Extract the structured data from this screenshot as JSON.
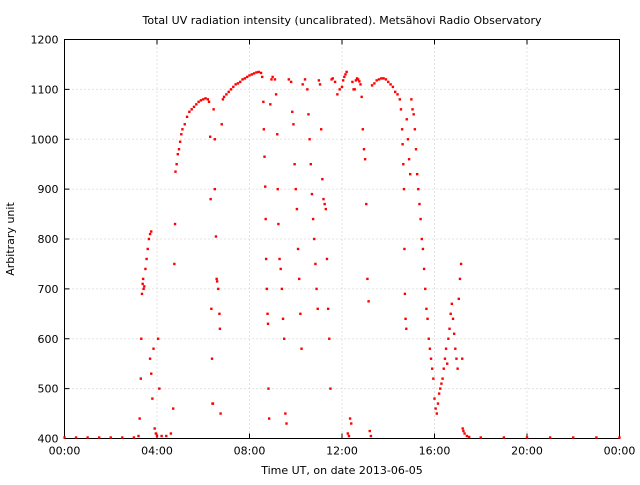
{
  "chart_data": {
    "type": "scatter",
    "title": "Total UV radiation intensity (uncalibrated). Metsähovi Radio Observatory",
    "xlabel": "Time UT, on date 2013-06-05",
    "ylabel": "Arbitrary unit",
    "xlim": [
      0,
      24
    ],
    "ylim": [
      400,
      1200
    ],
    "x_ticks": [
      {
        "value": 0,
        "label": "00:00"
      },
      {
        "value": 4,
        "label": "04:00"
      },
      {
        "value": 8,
        "label": "08:00"
      },
      {
        "value": 12,
        "label": "12:00"
      },
      {
        "value": 16,
        "label": "16:00"
      },
      {
        "value": 20,
        "label": "20:00"
      },
      {
        "value": 24,
        "label": "00:00"
      }
    ],
    "y_ticks": [
      {
        "value": 400,
        "label": "400"
      },
      {
        "value": 500,
        "label": "500"
      },
      {
        "value": 600,
        "label": "600"
      },
      {
        "value": 700,
        "label": "700"
      },
      {
        "value": 800,
        "label": "800"
      },
      {
        "value": 900,
        "label": "900"
      },
      {
        "value": 1000,
        "label": "1000"
      },
      {
        "value": 1100,
        "label": "1100"
      },
      {
        "value": 1200,
        "label": "1200"
      }
    ],
    "grid": true,
    "marker_color": "#ff0000",
    "series": [
      {
        "points": [
          [
            0.0,
            402
          ],
          [
            0.5,
            402
          ],
          [
            1.0,
            402
          ],
          [
            1.5,
            402
          ],
          [
            2.0,
            402
          ],
          [
            2.5,
            402
          ],
          [
            3.0,
            402
          ],
          [
            3.2,
            405
          ],
          [
            3.25,
            440
          ],
          [
            3.3,
            520
          ],
          [
            3.32,
            600
          ],
          [
            3.35,
            690
          ],
          [
            3.38,
            710
          ],
          [
            3.4,
            720
          ],
          [
            3.42,
            700
          ],
          [
            3.45,
            705
          ],
          [
            3.5,
            740
          ],
          [
            3.55,
            760
          ],
          [
            3.6,
            780
          ],
          [
            3.65,
            800
          ],
          [
            3.7,
            810
          ],
          [
            3.75,
            815
          ],
          [
            3.7,
            560
          ],
          [
            3.75,
            530
          ],
          [
            3.8,
            480
          ],
          [
            3.85,
            580
          ],
          [
            3.9,
            420
          ],
          [
            3.95,
            410
          ],
          [
            4.0,
            405
          ],
          [
            4.05,
            600
          ],
          [
            4.1,
            500
          ],
          [
            4.2,
            405
          ],
          [
            4.4,
            405
          ],
          [
            4.6,
            410
          ],
          [
            4.7,
            460
          ],
          [
            4.75,
            750
          ],
          [
            4.78,
            830
          ],
          [
            4.8,
            935
          ],
          [
            4.85,
            950
          ],
          [
            4.9,
            970
          ],
          [
            4.95,
            980
          ],
          [
            5.0,
            995
          ],
          [
            5.05,
            1010
          ],
          [
            5.1,
            1020
          ],
          [
            5.2,
            1030
          ],
          [
            5.3,
            1045
          ],
          [
            5.4,
            1055
          ],
          [
            5.5,
            1060
          ],
          [
            5.6,
            1065
          ],
          [
            5.7,
            1070
          ],
          [
            5.8,
            1075
          ],
          [
            5.9,
            1078
          ],
          [
            6.0,
            1080
          ],
          [
            6.1,
            1082
          ],
          [
            6.2,
            1080
          ],
          [
            6.25,
            1075
          ],
          [
            6.3,
            1005
          ],
          [
            6.32,
            880
          ],
          [
            6.35,
            660
          ],
          [
            6.38,
            560
          ],
          [
            6.4,
            470
          ],
          [
            6.42,
            470
          ],
          [
            6.45,
            1060
          ],
          [
            6.5,
            1000
          ],
          [
            6.5,
            900
          ],
          [
            6.55,
            805
          ],
          [
            6.58,
            720
          ],
          [
            6.6,
            715
          ],
          [
            6.65,
            700
          ],
          [
            6.7,
            650
          ],
          [
            6.72,
            620
          ],
          [
            6.75,
            450
          ],
          [
            6.8,
            1030
          ],
          [
            6.85,
            1080
          ],
          [
            6.9,
            1085
          ],
          [
            7.0,
            1090
          ],
          [
            7.1,
            1095
          ],
          [
            7.2,
            1100
          ],
          [
            7.3,
            1105
          ],
          [
            7.4,
            1110
          ],
          [
            7.5,
            1112
          ],
          [
            7.6,
            1115
          ],
          [
            7.7,
            1120
          ],
          [
            7.8,
            1122
          ],
          [
            7.9,
            1125
          ],
          [
            8.0,
            1128
          ],
          [
            8.1,
            1130
          ],
          [
            8.2,
            1132
          ],
          [
            8.3,
            1134
          ],
          [
            8.4,
            1135
          ],
          [
            8.5,
            1133
          ],
          [
            8.55,
            1125
          ],
          [
            8.6,
            1075
          ],
          [
            8.62,
            1020
          ],
          [
            8.65,
            965
          ],
          [
            8.68,
            905
          ],
          [
            8.7,
            840
          ],
          [
            8.72,
            760
          ],
          [
            8.75,
            700
          ],
          [
            8.78,
            650
          ],
          [
            8.8,
            630
          ],
          [
            8.82,
            500
          ],
          [
            8.85,
            440
          ],
          [
            8.9,
            1070
          ],
          [
            8.95,
            1120
          ],
          [
            9.0,
            1125
          ],
          [
            9.1,
            1120
          ],
          [
            9.15,
            1090
          ],
          [
            9.2,
            1010
          ],
          [
            9.22,
            900
          ],
          [
            9.25,
            830
          ],
          [
            9.3,
            760
          ],
          [
            9.35,
            740
          ],
          [
            9.4,
            700
          ],
          [
            9.45,
            640
          ],
          [
            9.5,
            600
          ],
          [
            9.55,
            450
          ],
          [
            9.6,
            430
          ],
          [
            9.7,
            1120
          ],
          [
            9.8,
            1115
          ],
          [
            9.85,
            1055
          ],
          [
            9.9,
            1030
          ],
          [
            9.95,
            950
          ],
          [
            10.0,
            900
          ],
          [
            10.05,
            860
          ],
          [
            10.1,
            780
          ],
          [
            10.15,
            720
          ],
          [
            10.2,
            650
          ],
          [
            10.25,
            580
          ],
          [
            10.3,
            1110
          ],
          [
            10.4,
            1120
          ],
          [
            10.5,
            1100
          ],
          [
            10.55,
            1050
          ],
          [
            10.6,
            1000
          ],
          [
            10.65,
            950
          ],
          [
            10.7,
            890
          ],
          [
            10.75,
            840
          ],
          [
            10.8,
            800
          ],
          [
            10.85,
            750
          ],
          [
            10.9,
            700
          ],
          [
            10.95,
            660
          ],
          [
            11.0,
            1118
          ],
          [
            11.05,
            1110
          ],
          [
            11.1,
            1020
          ],
          [
            11.15,
            920
          ],
          [
            11.2,
            880
          ],
          [
            11.25,
            870
          ],
          [
            11.3,
            860
          ],
          [
            11.35,
            760
          ],
          [
            11.4,
            660
          ],
          [
            11.45,
            600
          ],
          [
            11.5,
            500
          ],
          [
            11.55,
            1120
          ],
          [
            11.6,
            1122
          ],
          [
            11.7,
            1115
          ],
          [
            11.8,
            1090
          ],
          [
            11.9,
            1100
          ],
          [
            12.0,
            1105
          ],
          [
            12.05,
            1118
          ],
          [
            12.1,
            1125
          ],
          [
            12.15,
            1130
          ],
          [
            12.2,
            1135
          ],
          [
            12.25,
            410
          ],
          [
            12.3,
            405
          ],
          [
            12.35,
            440
          ],
          [
            12.4,
            430
          ],
          [
            12.45,
            1115
          ],
          [
            12.5,
            1100
          ],
          [
            12.55,
            1100
          ],
          [
            12.6,
            1118
          ],
          [
            12.65,
            1122
          ],
          [
            12.7,
            1120
          ],
          [
            12.75,
            1116
          ],
          [
            12.8,
            1110
          ],
          [
            12.85,
            1085
          ],
          [
            12.9,
            1020
          ],
          [
            12.95,
            980
          ],
          [
            13.0,
            960
          ],
          [
            13.05,
            870
          ],
          [
            13.1,
            720
          ],
          [
            13.15,
            675
          ],
          [
            13.2,
            415
          ],
          [
            13.25,
            405
          ],
          [
            13.3,
            1108
          ],
          [
            13.4,
            1112
          ],
          [
            13.5,
            1118
          ],
          [
            13.6,
            1120
          ],
          [
            13.7,
            1122
          ],
          [
            13.8,
            1122
          ],
          [
            13.9,
            1120
          ],
          [
            14.0,
            1115
          ],
          [
            14.1,
            1110
          ],
          [
            14.2,
            1105
          ],
          [
            14.3,
            1095
          ],
          [
            14.4,
            1090
          ],
          [
            14.5,
            1080
          ],
          [
            14.55,
            1060
          ],
          [
            14.6,
            1020
          ],
          [
            14.62,
            990
          ],
          [
            14.65,
            950
          ],
          [
            14.68,
            900
          ],
          [
            14.7,
            780
          ],
          [
            14.72,
            690
          ],
          [
            14.75,
            640
          ],
          [
            14.78,
            620
          ],
          [
            14.8,
            1040
          ],
          [
            14.85,
            1000
          ],
          [
            14.9,
            960
          ],
          [
            14.95,
            930
          ],
          [
            15.0,
            1080
          ],
          [
            15.05,
            1060
          ],
          [
            15.1,
            1050
          ],
          [
            15.15,
            1020
          ],
          [
            15.2,
            980
          ],
          [
            15.25,
            930
          ],
          [
            15.3,
            900
          ],
          [
            15.35,
            870
          ],
          [
            15.4,
            840
          ],
          [
            15.45,
            800
          ],
          [
            15.5,
            780
          ],
          [
            15.55,
            740
          ],
          [
            15.6,
            700
          ],
          [
            15.65,
            660
          ],
          [
            15.7,
            640
          ],
          [
            15.75,
            600
          ],
          [
            15.8,
            580
          ],
          [
            15.85,
            560
          ],
          [
            15.9,
            540
          ],
          [
            15.95,
            520
          ],
          [
            16.0,
            480
          ],
          [
            16.05,
            460
          ],
          [
            16.1,
            450
          ],
          [
            16.15,
            470
          ],
          [
            16.2,
            490
          ],
          [
            16.25,
            500
          ],
          [
            16.3,
            510
          ],
          [
            16.35,
            520
          ],
          [
            16.4,
            540
          ],
          [
            16.45,
            560
          ],
          [
            16.5,
            580
          ],
          [
            16.55,
            550
          ],
          [
            16.6,
            600
          ],
          [
            16.65,
            620
          ],
          [
            16.7,
            650
          ],
          [
            16.75,
            670
          ],
          [
            16.8,
            640
          ],
          [
            16.85,
            610
          ],
          [
            16.9,
            580
          ],
          [
            16.95,
            560
          ],
          [
            17.0,
            540
          ],
          [
            17.05,
            680
          ],
          [
            17.1,
            720
          ],
          [
            17.15,
            750
          ],
          [
            17.2,
            560
          ],
          [
            17.22,
            420
          ],
          [
            17.25,
            415
          ],
          [
            17.3,
            410
          ],
          [
            17.4,
            405
          ],
          [
            17.5,
            403
          ],
          [
            18.0,
            402
          ],
          [
            19.0,
            402
          ],
          [
            20.0,
            402
          ],
          [
            21.0,
            402
          ],
          [
            22.0,
            402
          ],
          [
            23.0,
            402
          ],
          [
            24.0,
            402
          ]
        ]
      }
    ]
  }
}
